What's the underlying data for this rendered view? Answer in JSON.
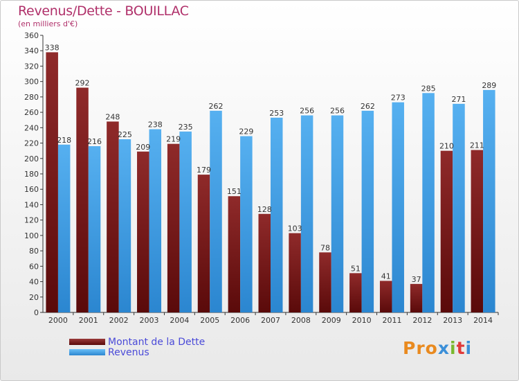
{
  "page": {
    "title": "Revenus/Dette - BOUILLAC",
    "subtitle": "(en milliers d'€)"
  },
  "colors": {
    "dette": "#7a1c1c",
    "revenus": "#3fa0e8",
    "title": "#b0306a",
    "legend_text": "#4a4ad8"
  },
  "logo": {
    "text": "Proxiti",
    "letter_colors": [
      "#e98a1f",
      "#e98a1f",
      "#e98a1f",
      "#3b8fd8",
      "#7ab82f",
      "#e03a3a",
      "#3b8fd8"
    ]
  },
  "chart_data": {
    "type": "bar",
    "categories": [
      "2000",
      "2001",
      "2002",
      "2003",
      "2004",
      "2005",
      "2006",
      "2007",
      "2008",
      "2009",
      "2010",
      "2011",
      "2012",
      "2013",
      "2014"
    ],
    "series": [
      {
        "name": "Montant de la Dette",
        "color": "#7a1c1c",
        "values": [
          338,
          292,
          248,
          209,
          219,
          179,
          151,
          128,
          103,
          78,
          51,
          41,
          37,
          210,
          211
        ]
      },
      {
        "name": "Revenus",
        "color": "#3fa0e8",
        "values": [
          218,
          216,
          225,
          238,
          235,
          262,
          229,
          253,
          256,
          256,
          262,
          273,
          285,
          271,
          289
        ]
      }
    ],
    "ylim": [
      0,
      360
    ],
    "ytick_step": 20,
    "grid": false,
    "legend_position": "bottom-left"
  }
}
